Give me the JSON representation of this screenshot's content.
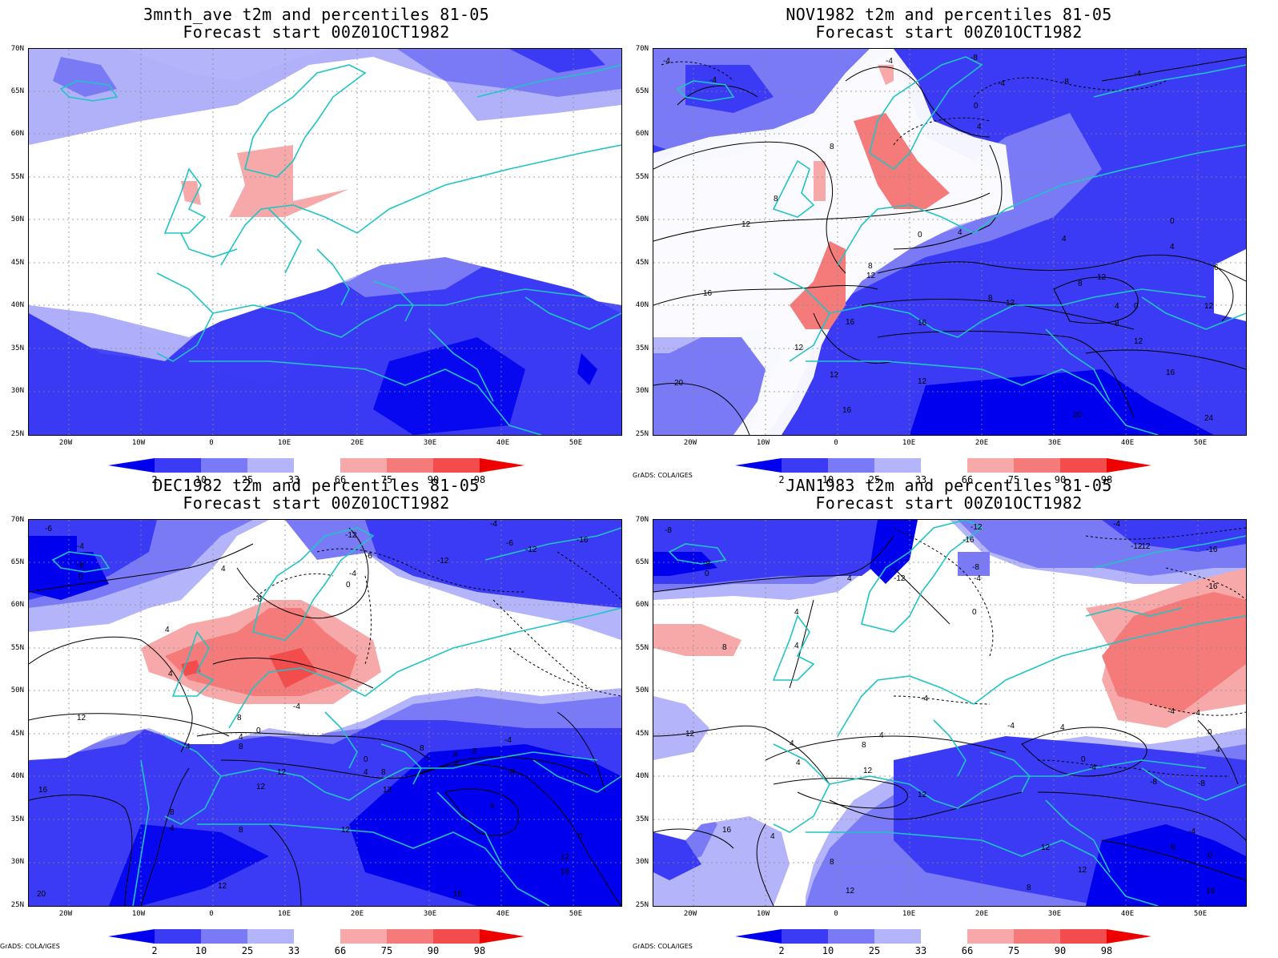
{
  "colors": {
    "p2": "#0000ee",
    "p10": "#3b3bf5",
    "p25": "#7a7af7",
    "p33": "#b4b4fa",
    "neutral": "#ffffff",
    "p66": "#f7a8a8",
    "p75": "#f57a7a",
    "p90": "#f24c4c",
    "p98": "#ee0000",
    "coast": "#20c4c4",
    "contour": "#000000"
  },
  "lat_labels": [
    "70N",
    "65N",
    "60N",
    "55N",
    "50N",
    "45N",
    "40N",
    "35N",
    "30N",
    "25N"
  ],
  "lon_labels": [
    "20W",
    "10W",
    "0",
    "10E",
    "20E",
    "30E",
    "40E",
    "50E"
  ],
  "colorbar_labels": [
    "2",
    "10",
    "25",
    "33",
    "66",
    "75",
    "90",
    "98"
  ],
  "credit": "GrADS: COLA/IGES",
  "panels": [
    {
      "title": "3mnth_ave t2m and percentiles 81-05",
      "subtitle": "Forecast start 00Z01OCT1982"
    },
    {
      "title": "NOV1982 t2m and percentiles 81-05",
      "subtitle": "Forecast start 00Z01OCT1982"
    },
    {
      "title": "DEC1982 t2m and percentiles 81-05",
      "subtitle": "Forecast start 00Z01OCT1982"
    },
    {
      "title": "JAN1983 t2m and percentiles 81-05",
      "subtitle": "Forecast start 00Z01OCT1982"
    }
  ],
  "contour_labels": {
    "panel2": [
      "-8",
      "-4",
      "-4",
      "-8",
      "-4",
      "-4",
      "-4",
      "0",
      "4",
      "8",
      "8",
      "12",
      "0",
      "4",
      "0",
      "4",
      "4",
      "8",
      "12",
      "16",
      "8",
      "12",
      "8",
      "12",
      "4",
      "0",
      "8",
      "12",
      "16",
      "12",
      "12",
      "16",
      "16",
      "20",
      "20",
      "24",
      "12",
      "16",
      "6",
      "12"
    ],
    "panel3": [
      "-12",
      "-6",
      "-4",
      "-4",
      "-8",
      "-6",
      "0",
      "4",
      "-12",
      "-6",
      "-4",
      "-12",
      "-16",
      "4",
      "-8",
      "0",
      "4",
      "8",
      "12",
      "-4",
      "4",
      "0",
      "8",
      "4",
      "4",
      "12",
      "12",
      "8",
      "8",
      "12",
      "4",
      "-4",
      "8",
      "4",
      "0",
      "-8",
      "4",
      "8",
      "16",
      "8",
      "4",
      "12",
      "12",
      "0",
      "12",
      "16",
      "16",
      "20"
    ],
    "panel4": [
      "-12",
      "-8",
      "-4",
      "-8",
      "0",
      "-12",
      "-16",
      "4",
      "-12",
      "-8",
      "-4",
      "-12",
      "-16",
      "4",
      "4",
      "0",
      "-4",
      "12",
      "8",
      "-4",
      "4",
      "4",
      "8",
      "12",
      "4",
      "-4",
      "4",
      "0",
      "-4",
      "-8",
      "-8",
      "12",
      "16",
      "4",
      "8",
      "12",
      "12",
      "8",
      "-4",
      "0",
      "8",
      "12",
      "16",
      "-16",
      "-4",
      "0",
      "4"
    ]
  }
}
